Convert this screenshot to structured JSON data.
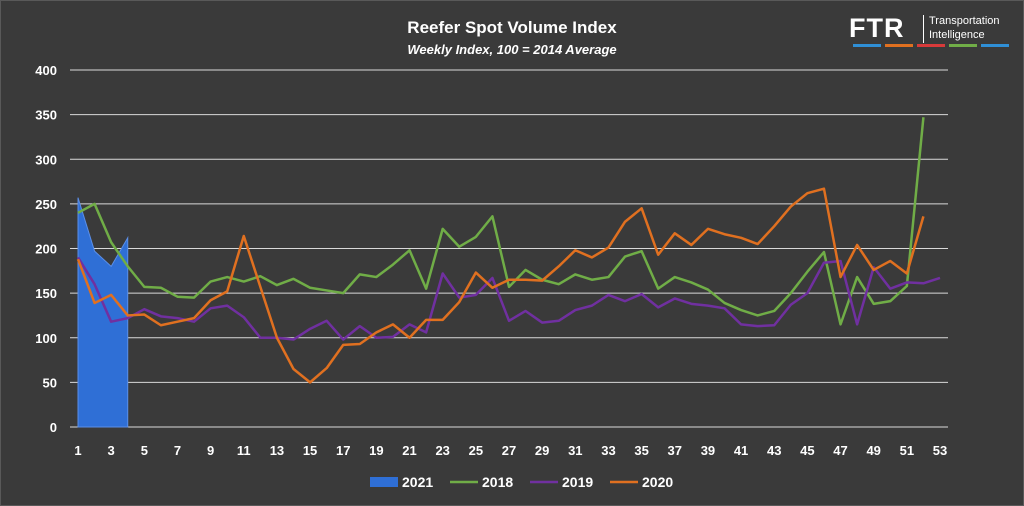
{
  "chart_data": {
    "type": "line",
    "title": "Reefer Spot Volume Index",
    "subtitle": "Weekly Index, 100 = 2014 Average",
    "xlabel": "",
    "ylabel": "",
    "xlim": [
      1,
      53
    ],
    "ylim": [
      0,
      400
    ],
    "yticks": [
      0,
      50,
      100,
      150,
      200,
      250,
      300,
      350,
      400
    ],
    "xticks": [
      1,
      3,
      5,
      7,
      9,
      11,
      13,
      15,
      17,
      19,
      21,
      23,
      25,
      27,
      29,
      31,
      33,
      35,
      37,
      39,
      41,
      43,
      45,
      47,
      49,
      51,
      53
    ],
    "grid": true,
    "legend": "bottom",
    "series": [
      {
        "name": "2021",
        "kind": "area",
        "color": "#2f6fd6",
        "x": [
          1,
          2,
          3,
          4
        ],
        "values": [
          257,
          197,
          180,
          212
        ]
      },
      {
        "name": "2018",
        "kind": "line",
        "color": "#70ad47",
        "x": [
          1,
          2,
          3,
          4,
          5,
          6,
          7,
          8,
          9,
          10,
          11,
          12,
          13,
          14,
          15,
          16,
          17,
          18,
          19,
          20,
          21,
          22,
          23,
          24,
          25,
          26,
          27,
          28,
          29,
          30,
          31,
          32,
          33,
          34,
          35,
          36,
          37,
          38,
          39,
          40,
          41,
          42,
          43,
          44,
          45,
          46,
          47,
          48,
          49,
          50,
          51,
          52
        ],
        "values": [
          240,
          250,
          207,
          180,
          157,
          156,
          146,
          145,
          163,
          168,
          163,
          169,
          159,
          166,
          156,
          153,
          150,
          171,
          168,
          182,
          198,
          155,
          222,
          202,
          213,
          236,
          157,
          176,
          165,
          160,
          171,
          165,
          168,
          191,
          197,
          155,
          168,
          162,
          154,
          139,
          131,
          125,
          130,
          150,
          174,
          196,
          115,
          168,
          138,
          141,
          158,
          347
        ]
      },
      {
        "name": "2019",
        "kind": "line",
        "color": "#7030a0",
        "x": [
          1,
          2,
          3,
          4,
          5,
          6,
          7,
          8,
          9,
          10,
          11,
          12,
          13,
          14,
          15,
          16,
          17,
          18,
          19,
          20,
          21,
          22,
          23,
          24,
          25,
          26,
          27,
          28,
          29,
          30,
          31,
          32,
          33,
          34,
          35,
          36,
          37,
          38,
          39,
          40,
          41,
          42,
          43,
          44,
          45,
          46,
          47,
          48,
          49,
          50,
          51,
          52,
          53
        ],
        "values": [
          190,
          160,
          118,
          122,
          132,
          124,
          122,
          118,
          133,
          136,
          123,
          100,
          100,
          98,
          110,
          119,
          98,
          113,
          100,
          101,
          115,
          106,
          172,
          145,
          148,
          167,
          119,
          130,
          117,
          119,
          131,
          136,
          148,
          141,
          149,
          134,
          144,
          138,
          136,
          133,
          115,
          113,
          114,
          137,
          150,
          184,
          186,
          115,
          179,
          155,
          162,
          161,
          167
        ]
      },
      {
        "name": "2020",
        "kind": "line",
        "color": "#e07020",
        "x": [
          1,
          2,
          3,
          4,
          5,
          6,
          7,
          8,
          9,
          10,
          11,
          12,
          13,
          14,
          15,
          16,
          17,
          18,
          19,
          20,
          21,
          22,
          23,
          24,
          25,
          26,
          27,
          28,
          29,
          30,
          31,
          32,
          33,
          34,
          35,
          36,
          37,
          38,
          39,
          40,
          41,
          42,
          43,
          44,
          45,
          46,
          47,
          48,
          49,
          50,
          51,
          52
        ],
        "values": [
          188,
          139,
          148,
          125,
          126,
          114,
          118,
          122,
          142,
          152,
          214,
          157,
          100,
          65,
          50,
          66,
          92,
          93,
          106,
          115,
          100,
          120,
          120,
          140,
          173,
          156,
          165,
          165,
          164,
          180,
          198,
          190,
          201,
          230,
          245,
          193,
          217,
          204,
          222,
          216,
          212,
          205,
          225,
          247,
          262,
          267,
          168,
          204,
          176,
          186,
          172,
          236
        ]
      }
    ]
  },
  "logo": {
    "mark": "FTR",
    "line1": "Transportation",
    "line2": "Intelligence",
    "stripe_colors": [
      "#2f8fd6",
      "#e07020",
      "#d83a3a",
      "#70ad47",
      "#2f8fd6"
    ]
  }
}
